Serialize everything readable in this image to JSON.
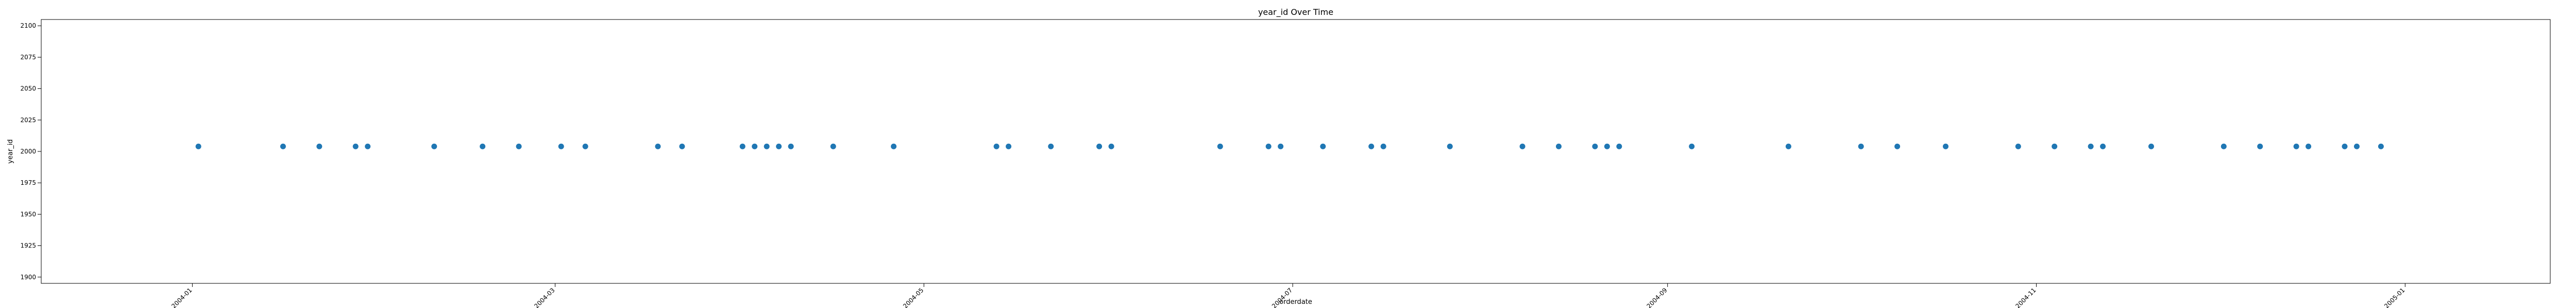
{
  "chart_data": {
    "type": "scatter",
    "title": "year_id Over Time",
    "xlabel": "orderdate",
    "ylabel": "year_id",
    "xlim": [
      "2003-12-07",
      "2005-01-25"
    ],
    "ylim": [
      1895,
      2105
    ],
    "x_ticks": [
      "2004-01",
      "2004-03",
      "2004-05",
      "2004-07",
      "2004-09",
      "2004-11",
      "2005-01"
    ],
    "y_ticks": [
      1900,
      1925,
      1950,
      1975,
      2000,
      2025,
      2050,
      2075,
      2100
    ],
    "grid": false,
    "legend": "none",
    "marker_color": "#1f77b4",
    "points": {
      "y": 2004,
      "x": [
        "2004-01-02",
        "2004-01-16",
        "2004-01-22",
        "2004-01-28",
        "2004-01-30",
        "2004-02-10",
        "2004-02-18",
        "2004-02-24",
        "2004-03-02",
        "2004-03-06",
        "2004-03-18",
        "2004-03-22",
        "2004-04-01",
        "2004-04-03",
        "2004-04-05",
        "2004-04-07",
        "2004-04-09",
        "2004-04-16",
        "2004-04-26",
        "2004-05-13",
        "2004-05-15",
        "2004-05-22",
        "2004-05-30",
        "2004-06-01",
        "2004-06-19",
        "2004-06-27",
        "2004-06-29",
        "2004-07-06",
        "2004-07-14",
        "2004-07-16",
        "2004-07-27",
        "2004-08-08",
        "2004-08-14",
        "2004-08-20",
        "2004-08-22",
        "2004-08-24",
        "2004-09-05",
        "2004-09-21",
        "2004-10-03",
        "2004-10-09",
        "2004-10-17",
        "2004-10-29",
        "2004-11-04",
        "2004-11-10",
        "2004-11-12",
        "2004-11-20",
        "2004-12-02",
        "2004-12-08",
        "2004-12-14",
        "2004-12-16",
        "2004-12-22",
        "2004-12-24",
        "2004-12-28"
      ]
    }
  }
}
